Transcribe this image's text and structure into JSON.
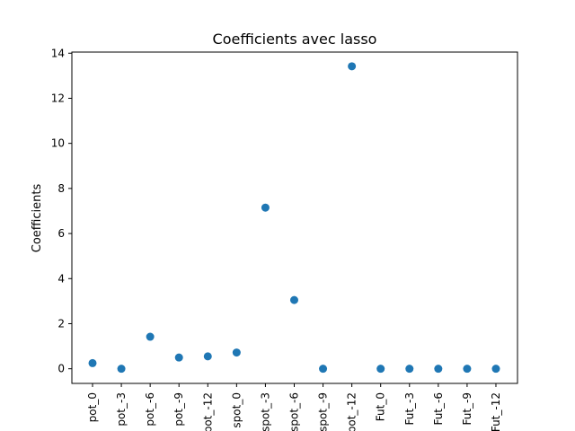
{
  "chart_data": {
    "type": "scatter",
    "title": "Coefficients avec lasso",
    "xlabel": "",
    "ylabel": "Coefficients",
    "ylim": [
      -0.65,
      14.05
    ],
    "yticks": [
      0,
      2,
      4,
      6,
      8,
      10,
      12,
      14
    ],
    "grid": false,
    "x": [
      "pot_0",
      "pot_-3",
      "pot_-6",
      "pot_-9",
      "pot_-12",
      "spot_0",
      "spot_-3",
      "spot_-6",
      "spot_-9",
      "spot_-12",
      "Fut_0",
      "Fut_-3",
      "Fut_-6",
      "Fut_-9",
      "Fut_-12"
    ],
    "values": [
      0.25,
      0.0,
      1.42,
      0.5,
      0.55,
      0.72,
      7.15,
      3.05,
      0.0,
      13.42,
      0.0,
      0.0,
      0.0,
      0.0,
      0.0
    ],
    "marker_color": "#1f77b4"
  }
}
